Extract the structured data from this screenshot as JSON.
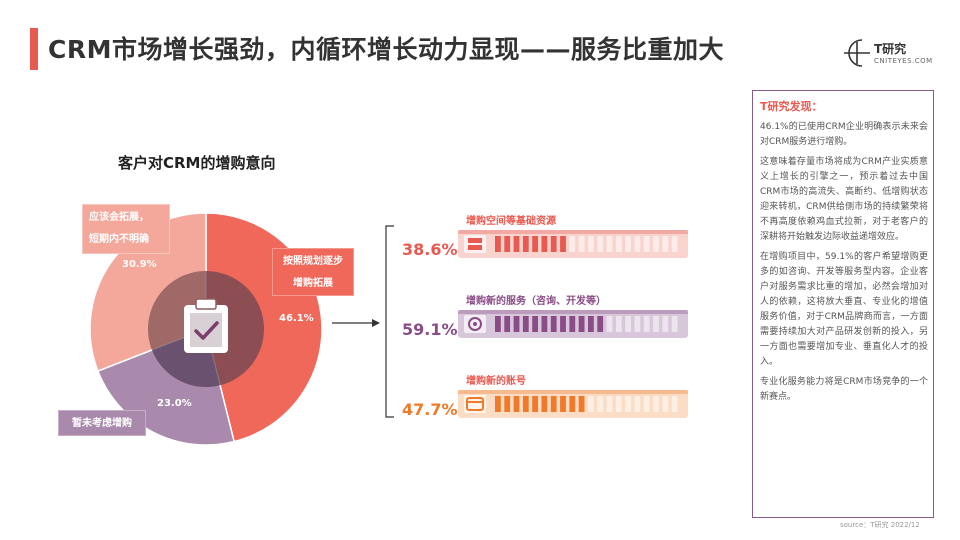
{
  "title": "CRM市场增长强劲，内循环增长动力显现——服务比重加大",
  "logo": {
    "name": "T研究",
    "sub": "CNITEYES.COM"
  },
  "colors": {
    "coral": "#f0685a",
    "pink": "#f4a79b",
    "purple": "#a98aac",
    "orange": "#f07a2a",
    "accent": "#e8594f"
  },
  "chart_data": [
    {
      "type": "pie",
      "title": "客户对CRM的增购意向",
      "slices": [
        {
          "label": "按照规划逐步增购拓展",
          "value": 46.1,
          "display": "46.1%",
          "color": "#f0685a"
        },
        {
          "label": "暂未考虑增购",
          "value": 23.0,
          "display": "23.0%",
          "color": "#a98aac"
        },
        {
          "label": "应该会拓展，短期内不明确",
          "value": 30.9,
          "display": "30.9%",
          "color": "#f4a79b"
        }
      ],
      "callouts": {
        "a_line1": "应该会拓展，",
        "a_line2": "短期内不明确",
        "b_line1": "按照规划逐步",
        "b_line2": "增购拓展",
        "c": "暂未考虑增购"
      },
      "center_icon": "clipboard-check-icon"
    },
    {
      "type": "bar",
      "categories": [
        "增购空间等基础资源",
        "增购新的服务（咨询、开发等）",
        "增购新的账号"
      ],
      "values": [
        38.6,
        59.1,
        47.7
      ],
      "display": [
        "38.6%",
        "59.1%",
        "47.7%"
      ],
      "colors": [
        "#e8594f",
        "#8a4c86",
        "#f07a2a"
      ],
      "light_colors": [
        "#f9d4cf",
        "#d8c6da",
        "#fbdcc4"
      ],
      "icons": [
        "server-icon",
        "gear-icon",
        "card-icon"
      ],
      "xlim": [
        0,
        100
      ]
    }
  ],
  "panel": {
    "heading": "T研究发现：",
    "paragraphs": [
      "46.1%的已使用CRM企业明确表示未来会对CRM服务进行增购。",
      "这意味着存量市场将成为CRM产业实质意义上增长的引擎之一，预示着过去中国CRM市场的高流失、高断约、低增购状态迎来转机，CRM供给侧市场的持续繁荣将不再高度依赖鸡血式拉新，对于老客户的深耕将开始触发边际收益递增效应。",
      "在增购项目中，59.1%的客户希望增购更多的如咨询、开发等服务型内容。企业客户对服务需求比重的增加，必然会增加对人的依赖，这将放大垂直、专业化的增值服务价值，对于CRM品牌商而言，一方面需要持续加大对产品研发创新的投入，另一方面也需要增加专业、垂直化人才的投入。",
      "专业化服务能力将是CRM市场竞争的一个新赛点。"
    ]
  },
  "source": "source：T研究 2022/12"
}
